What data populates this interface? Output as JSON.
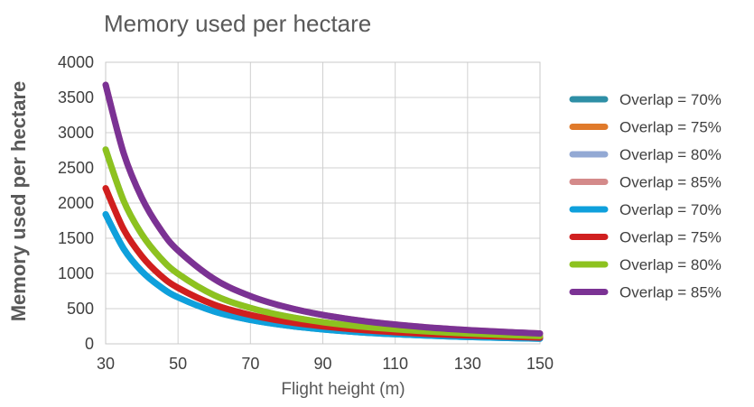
{
  "chart_data": {
    "type": "line",
    "title": "Memory used per hectare",
    "xlabel": "Flight height (m)",
    "ylabel": "Memory used per hectare",
    "xlim": [
      30,
      150
    ],
    "ylim": [
      0,
      4000
    ],
    "x_ticks": [
      "30",
      "50",
      "70",
      "90",
      "110",
      "130",
      "150"
    ],
    "y_ticks": [
      "0",
      "500",
      "1000",
      "1500",
      "2000",
      "2500",
      "3000",
      "3500",
      "4000"
    ],
    "grid": true,
    "legend_position": "right",
    "x": [
      30,
      35,
      40,
      45,
      50,
      60,
      70,
      80,
      90,
      100,
      110,
      120,
      130,
      140,
      150
    ],
    "series": [
      {
        "name": "Overlap = 70%",
        "color": "#2E8FA6",
        "values": [
          1840,
          1350,
          1030,
          815,
          660,
          460,
          340,
          260,
          205,
          165,
          137,
          115,
          98,
          85,
          74
        ]
      },
      {
        "name": "Overlap = 75%",
        "color": "#E07A2B",
        "values": [
          2210,
          1625,
          1245,
          980,
          795,
          555,
          410,
          313,
          248,
          200,
          165,
          139,
          118,
          102,
          89
        ]
      },
      {
        "name": "Overlap = 80%",
        "color": "#93A9D4",
        "values": [
          2760,
          2030,
          1555,
          1228,
          995,
          690,
          510,
          390,
          308,
          248,
          206,
          173,
          147,
          127,
          110
        ]
      },
      {
        "name": "Overlap = 85%",
        "color": "#D48A8A",
        "values": [
          3680,
          2705,
          2072,
          1637,
          1326,
          920,
          678,
          520,
          410,
          332,
          274,
          230,
          196,
          169,
          147
        ]
      },
      {
        "name": "Overlap = 70%",
        "color": "#0FA0DC",
        "values": [
          1840,
          1350,
          1030,
          815,
          660,
          460,
          340,
          260,
          205,
          165,
          137,
          115,
          98,
          85,
          74
        ]
      },
      {
        "name": "Overlap = 75%",
        "color": "#D01F1F",
        "values": [
          2210,
          1625,
          1245,
          980,
          795,
          555,
          410,
          313,
          248,
          200,
          165,
          139,
          118,
          102,
          89
        ]
      },
      {
        "name": "Overlap = 80%",
        "color": "#8DC21F",
        "values": [
          2760,
          2030,
          1555,
          1228,
          995,
          690,
          510,
          390,
          308,
          248,
          206,
          173,
          147,
          127,
          110
        ]
      },
      {
        "name": "Overlap = 85%",
        "color": "#7B3294",
        "values": [
          3680,
          2705,
          2072,
          1637,
          1326,
          920,
          678,
          520,
          410,
          332,
          274,
          230,
          196,
          169,
          147
        ]
      }
    ]
  }
}
